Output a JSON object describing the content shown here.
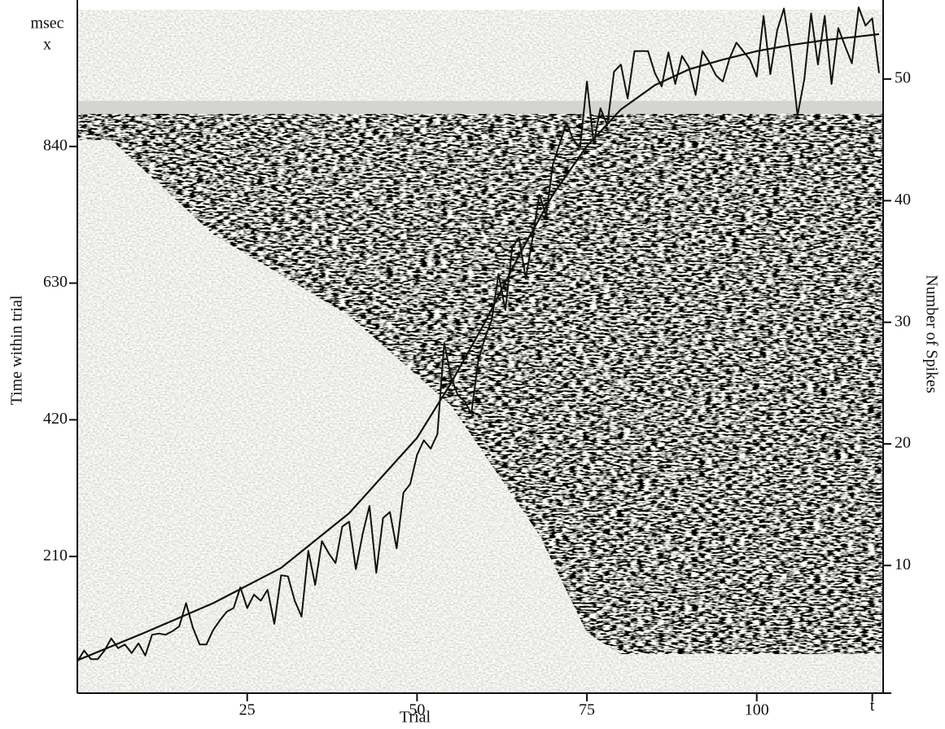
{
  "chart_data": {
    "type": "raster",
    "xlabel": "Trial",
    "ylabel": "Time within trial",
    "y_unit": "msec",
    "y_marker": "x",
    "y2label": "Number of Spikes",
    "xlim": [
      0,
      118.6
    ],
    "xticks": [
      25,
      50,
      75,
      100,
      {
        "value": 117,
        "label": "t"
      }
    ],
    "ylim": [
      0,
      1050
    ],
    "yticks": [
      210,
      420,
      630,
      840
    ],
    "y2lim": [
      -0.5,
      55.7
    ],
    "y2ticks": [
      10,
      20,
      30,
      40,
      50
    ],
    "raster": {
      "x": [
        0,
        5,
        20,
        40,
        55,
        68,
        75,
        80,
        118
      ],
      "response_onset": [
        850,
        850,
        705,
        580,
        442,
        243,
        93,
        60,
        60
      ],
      "trial_end": 900
    },
    "series": [
      {
        "axis": "y2",
        "color": "#111111",
        "x": [
          0,
          1,
          2,
          3,
          4,
          5,
          6,
          7,
          8,
          9,
          10,
          11,
          12,
          13,
          14,
          15,
          16,
          17,
          18,
          19,
          20,
          21,
          22,
          23,
          24,
          25,
          26,
          27,
          28,
          29,
          30,
          31,
          32,
          33,
          34,
          35,
          36,
          37,
          38,
          39,
          40,
          41,
          42,
          43,
          44,
          45,
          46,
          47,
          48,
          49,
          50,
          51,
          52,
          53,
          54,
          55,
          56,
          57,
          58,
          59,
          60,
          61,
          62,
          63,
          64,
          65,
          66,
          67,
          68,
          69,
          70,
          71,
          72,
          73,
          74,
          75,
          76,
          77,
          78,
          79,
          80,
          81,
          82,
          83,
          84,
          85,
          86,
          87,
          88,
          89,
          90,
          91,
          92,
          93,
          94,
          95,
          96,
          97,
          98,
          99,
          100,
          101,
          102,
          103,
          104,
          105,
          106,
          107,
          108,
          109,
          110,
          111,
          112,
          113,
          114,
          115,
          116,
          117,
          118
        ],
        "values": [
          2.1,
          3.0,
          2.3,
          2.3,
          3.0,
          4.0,
          3.2,
          3.5,
          2.8,
          3.6,
          2.6,
          4.3,
          4.4,
          4.3,
          4.6,
          5.0,
          6.9,
          4.9,
          3.5,
          3.5,
          4.7,
          5.5,
          6.2,
          6.5,
          8.2,
          6.5,
          7.6,
          7.1,
          8.0,
          5.2,
          9.2,
          9.1,
          7.1,
          5.8,
          11.2,
          8.4,
          12.0,
          11.0,
          10.2,
          13.2,
          13.6,
          9.7,
          12.6,
          14.9,
          9.4,
          13.9,
          14.4,
          11.4,
          16.0,
          16.7,
          19.1,
          20.3,
          19.6,
          20.8,
          28.3,
          25.5,
          24.0,
          23.5,
          22.5,
          26.8,
          28.7,
          30.2,
          34.0,
          31.0,
          36.1,
          37.0,
          33.6,
          36.9,
          40.5,
          38.8,
          43.0,
          44.7,
          46.4,
          45.0,
          44.4,
          49.8,
          44.7,
          47.6,
          46.2,
          50.6,
          51.2,
          48.4,
          52.3,
          52.3,
          52.3,
          50.5,
          49.4,
          52.2,
          49.6,
          51.9,
          51.0,
          48.7,
          52.3,
          51.4,
          50.3,
          49.8,
          51.7,
          53.0,
          52.3,
          51.6,
          50.2,
          55.2,
          50.4,
          54.0,
          55.8,
          52.1,
          47.0,
          50.0,
          55.4,
          51.2,
          55.2,
          49.6,
          54.2,
          52.7,
          51.3,
          55.9,
          54.4,
          55.0,
          50.5
        ]
      },
      {
        "axis": "y2",
        "color": "#111111",
        "x": [
          0,
          10,
          20,
          30,
          40,
          50,
          55,
          60,
          65,
          70,
          75,
          80,
          85,
          90,
          95,
          100,
          105,
          110,
          115,
          118
        ],
        "values": [
          2.2,
          4.5,
          6.9,
          9.8,
          14.3,
          20.5,
          25.0,
          30.0,
          35.5,
          40.5,
          44.5,
          47.5,
          49.5,
          50.8,
          51.6,
          52.3,
          52.8,
          53.2,
          53.5,
          53.7
        ]
      }
    ]
  }
}
